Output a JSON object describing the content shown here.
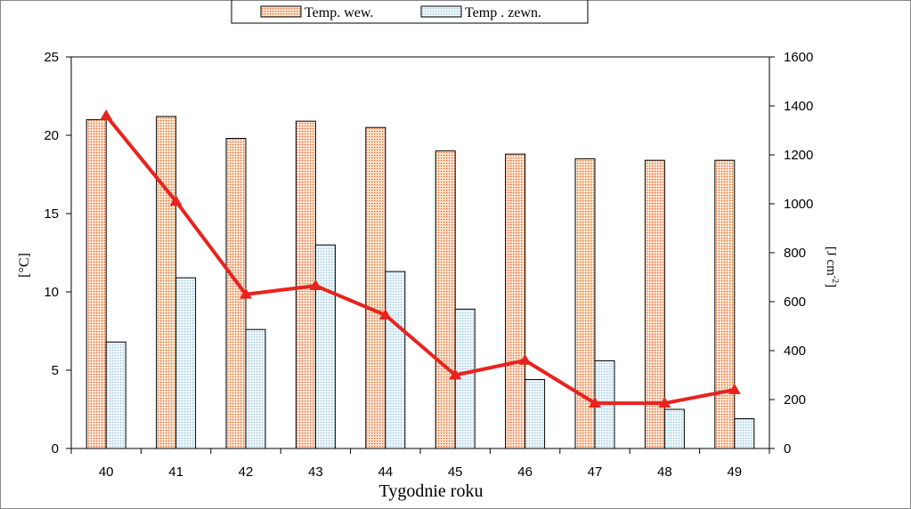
{
  "chart_data": {
    "type": "bar",
    "categories": [
      "40",
      "41",
      "42",
      "43",
      "44",
      "45",
      "46",
      "47",
      "48",
      "49"
    ],
    "series": [
      {
        "name": "Temp. wew.",
        "type": "bar",
        "axis": "left",
        "color": "#e07a3a",
        "values": [
          21.0,
          21.2,
          19.8,
          20.9,
          20.5,
          19.0,
          18.8,
          18.5,
          18.4,
          18.4
        ]
      },
      {
        "name": "Temp . zewn.",
        "type": "bar",
        "axis": "left",
        "color": "#9fc9e0",
        "values": [
          6.8,
          10.9,
          7.6,
          13.0,
          11.3,
          8.9,
          4.4,
          5.6,
          2.5,
          1.9
        ]
      },
      {
        "name": "",
        "type": "line",
        "axis": "right",
        "color": "#e8231e",
        "values": [
          1360,
          1010,
          630,
          665,
          545,
          300,
          360,
          185,
          185,
          240
        ]
      }
    ],
    "xlabel": "Tygodnie roku",
    "ylabel": "[°C]",
    "ylabel_right": "[J cm-2]",
    "ylabel_right_base": "[J cm",
    "ylabel_right_sup": "-2",
    "ylabel_right_close": "]",
    "ylim": [
      0,
      25
    ],
    "yticks": [
      0,
      5,
      10,
      15,
      20,
      25
    ],
    "ylim_right": [
      0,
      1600
    ],
    "yticks_right": [
      0,
      200,
      400,
      600,
      800,
      1000,
      1200,
      1400,
      1600
    ],
    "grid": false,
    "legend_position": "top-center"
  }
}
